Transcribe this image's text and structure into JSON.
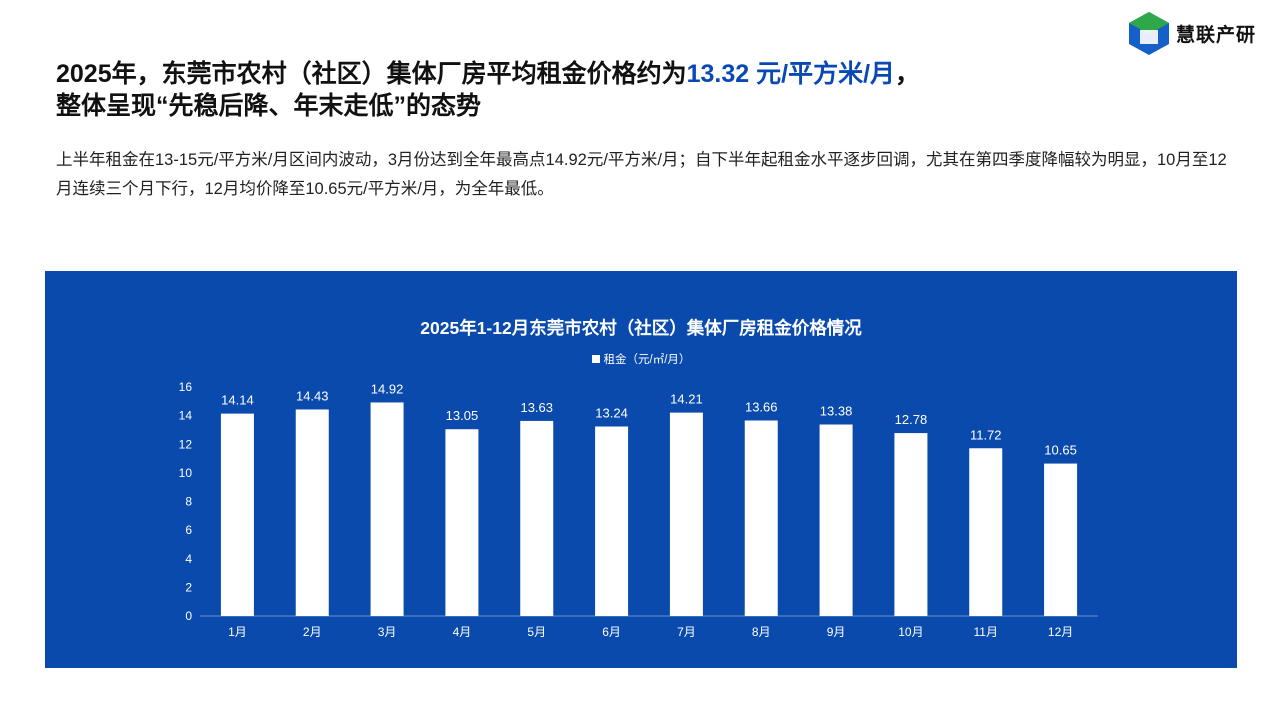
{
  "logo": {
    "name": "慧联产研"
  },
  "title": {
    "line1_prefix": "2025年，东莞市农村（社区）集体厂房平均租金价格约为",
    "line1_highlight": "13.32 元/平方米/月",
    "line1_suffix": "，",
    "line2": "整体呈现“先稳后降、年末走低”的态势"
  },
  "description": "上半年租金在13-15元/平方米/月区间内波动，3月份达到全年最高点14.92元/平方米/月；自下半年起租金水平逐步回调，尤其在第四季度降幅较为明显，10月至12月连续三个月下行，12月均价降至10.65元/平方米/月，为全年最低。",
  "colors": {
    "panel": "#0a4aad",
    "highlight": "#0a48b5",
    "bar": "#ffffff"
  },
  "chart_data": {
    "type": "bar",
    "title": "2025年1-12月东莞市农村（社区）集体厂房租金价格情况",
    "legend": "租金（元/㎡/月）",
    "legend_position": "top",
    "categories": [
      "1月",
      "2月",
      "3月",
      "4月",
      "5月",
      "6月",
      "7月",
      "8月",
      "9月",
      "10月",
      "11月",
      "12月"
    ],
    "values": [
      14.14,
      14.43,
      14.92,
      13.05,
      13.63,
      13.24,
      14.21,
      13.66,
      13.38,
      12.78,
      11.72,
      10.65
    ],
    "ylim": [
      0,
      16
    ],
    "yticks": [
      0,
      2,
      4,
      6,
      8,
      10,
      12,
      14,
      16
    ],
    "xlabel": "",
    "ylabel": ""
  }
}
